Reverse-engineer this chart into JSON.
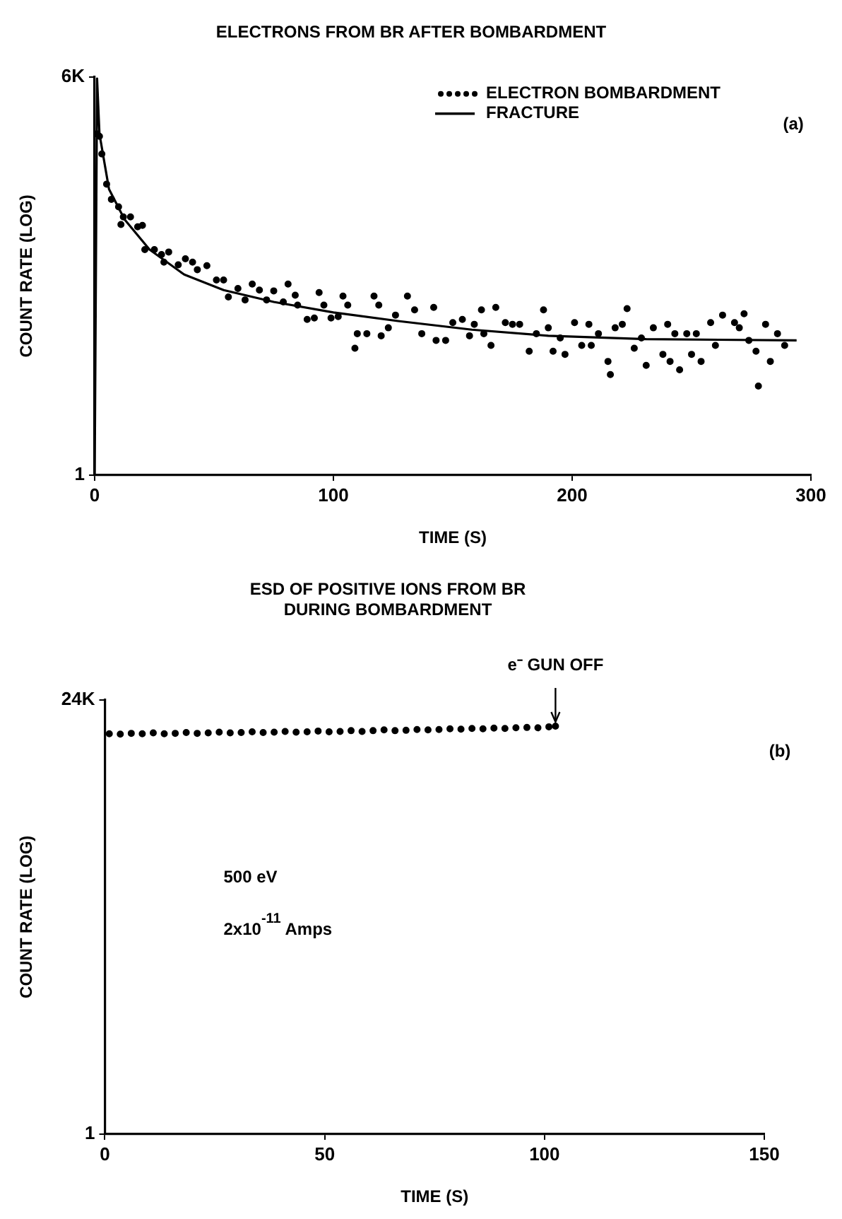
{
  "chart_data": [
    {
      "type": "scatter",
      "title": "ELECTRONS FROM BR AFTER BOMBARDMENT",
      "xlabel": "TIME (S)",
      "ylabel": "COUNT RATE (LOG)",
      "xlim": [
        0,
        300
      ],
      "xticks": [
        0,
        100,
        200,
        300
      ],
      "ylim": [
        1,
        6000
      ],
      "yticks": [
        1,
        {
          "value": 6000,
          "label": "6K"
        }
      ],
      "log": "y",
      "legend": "top right",
      "marker": "circle",
      "annotations": [
        "(a)"
      ],
      "series": [
        {
          "name": "ELECTRON BOMBARDMENT",
          "color": "#000000",
          "x": [
            1,
            2,
            3,
            5,
            7,
            10,
            11,
            12,
            15,
            18,
            20,
            21,
            25,
            28,
            29,
            31,
            35,
            38,
            41,
            43,
            47,
            51,
            54,
            56,
            60,
            63,
            66,
            69,
            72,
            75,
            79,
            81,
            84,
            85,
            89,
            92,
            94,
            96,
            99,
            102,
            104,
            106,
            109,
            110,
            114,
            117,
            119,
            120,
            123,
            126,
            131,
            134,
            137,
            142,
            143,
            147,
            150,
            154,
            157,
            159,
            162,
            163,
            166,
            168,
            172,
            175,
            178,
            182,
            185,
            188,
            190,
            192,
            195,
            197,
            201,
            204,
            207,
            208,
            211,
            215,
            216,
            218,
            221,
            223,
            226,
            229,
            231,
            234,
            238,
            240,
            241,
            243,
            245,
            248,
            250,
            252,
            254,
            258,
            260,
            263,
            268,
            270,
            272,
            274,
            277,
            278,
            281,
            283,
            286,
            289
          ],
          "values": [
            1730,
            1640,
            1115,
            577,
            414,
            351,
            239,
            282,
            282,
            227,
            234,
            138,
            138,
            124,
            105,
            131,
            99,
            113,
            105,
            89,
            97,
            71,
            71,
            49,
            59,
            46,
            65,
            57,
            46,
            56,
            44,
            65,
            51,
            41,
            30,
            31,
            54,
            41,
            31,
            32,
            50,
            41,
            16,
            22,
            22,
            50,
            41,
            21,
            25,
            33,
            50,
            37,
            22,
            39,
            19,
            19,
            28,
            30,
            21,
            27,
            37,
            22,
            17,
            39,
            28,
            27,
            27,
            15,
            22,
            37,
            25,
            15,
            20,
            14,
            28,
            17,
            27,
            17,
            22,
            12,
            9,
            25,
            27,
            38,
            16,
            20,
            11,
            25,
            14,
            27,
            12,
            22,
            10,
            22,
            14,
            22,
            12,
            28,
            17,
            33,
            28,
            25,
            34,
            19,
            15,
            7,
            27,
            12,
            22,
            17
          ]
        },
        {
          "name": "FRACTURE",
          "type": "line",
          "color": "#000000",
          "line_style": "solid",
          "marker": "none",
          "x": [
            0,
            1,
            2,
            6,
            12.5,
            23,
            37.5,
            54,
            75,
            100,
            127,
            158,
            190,
            231,
            294
          ],
          "values": [
            1,
            5800,
            1730,
            517,
            267,
            138,
            80,
            57,
            44,
            35,
            29,
            24,
            21,
            19.5,
            19
          ]
        }
      ]
    },
    {
      "type": "scatter",
      "title": "ESD OF POSITIVE IONS FROM BR\nDURING BOMBARDMENT",
      "xlabel": "TIME (S)",
      "ylabel": "COUNT RATE (LOG)",
      "xlim": [
        0,
        150
      ],
      "xticks": [
        0,
        50,
        100,
        150
      ],
      "ylim": [
        1,
        24000
      ],
      "yticks": [
        1,
        {
          "value": 24000,
          "label": "24K"
        }
      ],
      "log": "y",
      "legend": false,
      "marker": "circle",
      "annotations": [
        {
          "text": "e⁻ GUN OFF",
          "x": 102.5,
          "y": 13000
        },
        "(b)",
        "500 eV",
        "2x10$^{-11}$ Amps"
      ],
      "series": [
        {
          "color": "#000000",
          "x": [
            1,
            3.5,
            6,
            8.5,
            11,
            13.5,
            16,
            18.5,
            21,
            23.5,
            26,
            28.5,
            31,
            33.5,
            36,
            38.5,
            41,
            43.5,
            46,
            48.5,
            51,
            53.5,
            56,
            58.5,
            61,
            63.5,
            66,
            68.5,
            71,
            73.5,
            76,
            78.5,
            81,
            83.5,
            86,
            88.5,
            91,
            93.5,
            96,
            98.5,
            101,
            102.5
          ],
          "values": [
            10900,
            10800,
            11000,
            10900,
            11100,
            10900,
            11000,
            11200,
            11000,
            11100,
            11300,
            11100,
            11200,
            11400,
            11200,
            11300,
            11500,
            11300,
            11400,
            11600,
            11400,
            11500,
            11700,
            11500,
            11700,
            11900,
            11700,
            11800,
            12000,
            11900,
            12000,
            12200,
            12100,
            12300,
            12200,
            12400,
            12300,
            12500,
            12600,
            12500,
            12800,
            13000
          ]
        }
      ]
    }
  ]
}
